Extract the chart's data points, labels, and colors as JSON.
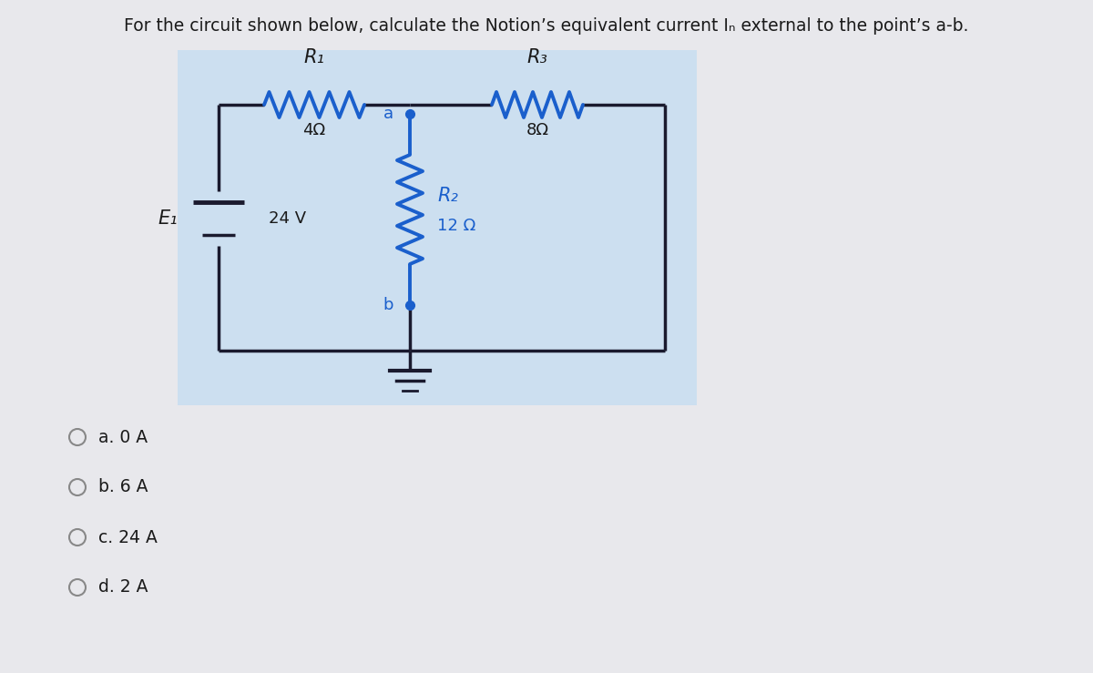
{
  "title": "For the circuit shown below, calculate the Notion’s equivalent current Iₙ external to the point’s a-b.",
  "bg_outer": "#e8e8ec",
  "bg_inner": "#ccdff0",
  "wire_color_dark": "#1a1a2e",
  "wire_color_blue": "#1a5fcc",
  "text_color": "#1a1a1a",
  "choices": [
    "a. 0 A",
    "b. 6 A",
    "c. 24 A",
    "d. 2 A"
  ],
  "r1_label": "R₁",
  "r1_val": "4Ω",
  "r2_label": "R₂",
  "r2_val": "12 Ω",
  "r3_label": "R₃",
  "r3_val": "8Ω",
  "e1_label": "E₁",
  "e1_val": "24 V",
  "node_a": "a",
  "node_b": "b"
}
